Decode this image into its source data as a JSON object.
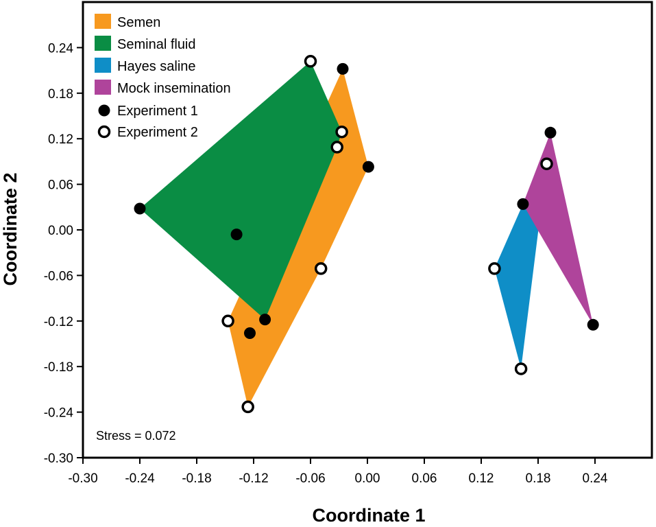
{
  "chart_data": {
    "type": "scatter",
    "xlabel": "Coordinate 1",
    "ylabel": "Coordinate 2",
    "xlim": [
      -0.3,
      0.3
    ],
    "ylim": [
      -0.3,
      0.3
    ],
    "x_ticks": [
      -0.3,
      -0.24,
      -0.18,
      -0.12,
      -0.06,
      0.0,
      0.06,
      0.12,
      0.18,
      0.24
    ],
    "x_tick_labels": [
      "-0.30",
      "-0.24",
      "-0.18",
      "-0.12",
      "-0.06",
      "0.00",
      "0.06",
      "0.12",
      "0.18",
      "0.24"
    ],
    "y_ticks": [
      -0.3,
      -0.24,
      -0.18,
      -0.12,
      -0.06,
      0.0,
      0.06,
      0.12,
      0.18,
      0.24
    ],
    "y_tick_labels": [
      "-0.30",
      "-0.24",
      "-0.18",
      "-0.12",
      "-0.06",
      "0.00",
      "0.06",
      "0.12",
      "0.18",
      "0.24"
    ],
    "grid": false,
    "legend_position": "top-left",
    "annotation": "Stress = 0.072",
    "groups": [
      {
        "name": "Semen",
        "color": "#F7991F",
        "hull": [
          [
            -0.026,
            0.212
          ],
          [
            0.001,
            0.083
          ],
          [
            -0.049,
            -0.051
          ],
          [
            -0.126,
            -0.233
          ],
          [
            -0.147,
            -0.12
          ]
        ]
      },
      {
        "name": "Seminal fluid",
        "color": "#0A8D44",
        "hull": [
          [
            -0.06,
            0.222
          ],
          [
            -0.027,
            0.129
          ],
          [
            -0.032,
            0.109
          ],
          [
            -0.108,
            -0.118
          ],
          [
            -0.24,
            0.028
          ]
        ]
      },
      {
        "name": "Hayes saline",
        "color": "#0F8EC7",
        "hull": [
          [
            0.189,
            0.087
          ],
          [
            0.162,
            -0.183
          ],
          [
            0.134,
            -0.051
          ],
          [
            0.164,
            0.034
          ]
        ]
      },
      {
        "name": "Mock insemination",
        "color": "#AF449B",
        "hull": [
          [
            0.193,
            0.128
          ],
          [
            0.238,
            -0.125
          ],
          [
            0.18,
            -0.001
          ],
          [
            0.164,
            0.034
          ]
        ]
      }
    ],
    "experiments": [
      {
        "name": "Experiment 1",
        "marker": "filled"
      },
      {
        "name": "Experiment 2",
        "marker": "open"
      }
    ],
    "points": [
      {
        "x": -0.06,
        "y": 0.222,
        "exp": "Experiment 2"
      },
      {
        "x": -0.026,
        "y": 0.212,
        "exp": "Experiment 1"
      },
      {
        "x": -0.027,
        "y": 0.129,
        "exp": "Experiment 2"
      },
      {
        "x": -0.032,
        "y": 0.109,
        "exp": "Experiment 2"
      },
      {
        "x": 0.001,
        "y": 0.083,
        "exp": "Experiment 1"
      },
      {
        "x": -0.24,
        "y": 0.028,
        "exp": "Experiment 1"
      },
      {
        "x": -0.138,
        "y": -0.006,
        "exp": "Experiment 1"
      },
      {
        "x": -0.049,
        "y": -0.051,
        "exp": "Experiment 2"
      },
      {
        "x": -0.147,
        "y": -0.12,
        "exp": "Experiment 2"
      },
      {
        "x": -0.108,
        "y": -0.118,
        "exp": "Experiment 1"
      },
      {
        "x": -0.124,
        "y": -0.136,
        "exp": "Experiment 1"
      },
      {
        "x": -0.126,
        "y": -0.233,
        "exp": "Experiment 2"
      },
      {
        "x": 0.193,
        "y": 0.128,
        "exp": "Experiment 1"
      },
      {
        "x": 0.189,
        "y": 0.087,
        "exp": "Experiment 2"
      },
      {
        "x": 0.164,
        "y": 0.034,
        "exp": "Experiment 1"
      },
      {
        "x": 0.134,
        "y": -0.051,
        "exp": "Experiment 2"
      },
      {
        "x": 0.238,
        "y": -0.125,
        "exp": "Experiment 1"
      },
      {
        "x": 0.162,
        "y": -0.183,
        "exp": "Experiment 2"
      }
    ]
  }
}
